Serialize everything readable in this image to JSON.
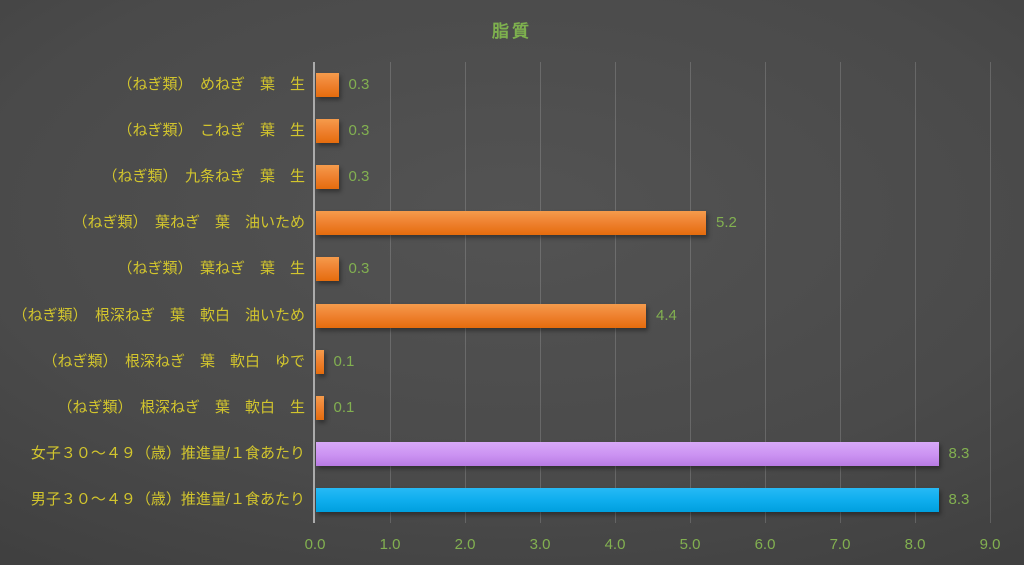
{
  "chart_data": {
    "type": "bar",
    "orientation": "horizontal",
    "title": "脂質",
    "categories": [
      "（ねぎ類）　めねぎ　葉　生",
      "（ねぎ類）　こねぎ　葉　生",
      "（ねぎ類）　九条ねぎ　葉　生",
      "（ねぎ類）　葉ねぎ　葉　油いため",
      "（ねぎ類）　葉ねぎ　葉　生",
      "（ねぎ類）　根深ねぎ　葉　軟白　油いため",
      "（ねぎ類）　根深ねぎ　葉　軟白　ゆで",
      "（ねぎ類）　根深ねぎ　葉　軟白　生",
      "女子３０～４９（歳）推進量/１食あたり",
      "男子３０～４９（歳）推進量/１食あたり"
    ],
    "values": [
      0.3,
      0.3,
      0.3,
      5.2,
      0.3,
      4.4,
      0.1,
      0.1,
      8.3,
      8.3
    ],
    "value_labels": [
      "0.3",
      "0.3",
      "0.3",
      "5.2",
      "0.3",
      "4.4",
      "0.1",
      "0.1",
      "8.3",
      "8.3"
    ],
    "bar_colors": [
      "#ED7D31",
      "#ED7D31",
      "#ED7D31",
      "#ED7D31",
      "#ED7D31",
      "#ED7D31",
      "#ED7D31",
      "#ED7D31",
      "#C98FF0",
      "#00B0F0"
    ],
    "x_ticks": [
      "0.0",
      "1.0",
      "2.0",
      "3.0",
      "4.0",
      "5.0",
      "6.0",
      "7.0",
      "8.0",
      "9.0"
    ],
    "xlim": [
      0,
      9
    ],
    "grid": "vertical-gridlines-on",
    "legend": "none",
    "colors": {
      "title": "#7EB14E",
      "tick_label": "#82B050",
      "value_label": "#82B050",
      "category_label": "#D2C52D",
      "axis_line": "#ABABAB",
      "background": "#454545"
    }
  }
}
